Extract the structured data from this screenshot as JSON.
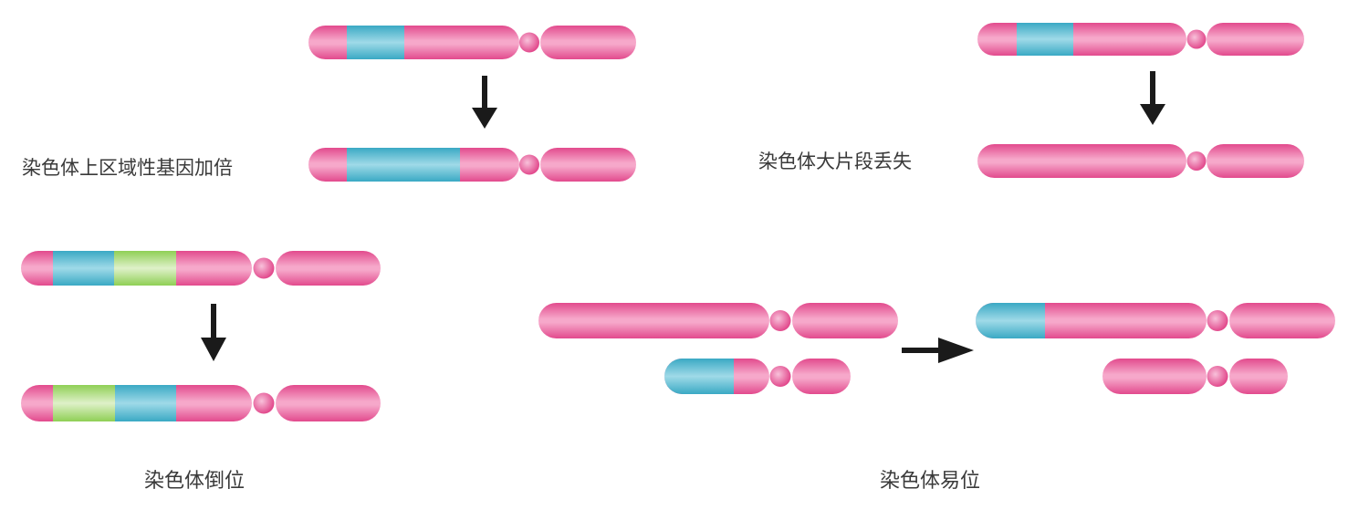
{
  "colors": {
    "arm": "#e24a8d",
    "arm_highlight": "#f6a8ca",
    "segment_blue": "#3aa9c4",
    "segment_blue_highlight": "#9fdae8",
    "segment_green": "#8fcf55",
    "segment_green_highlight": "#dff1c9",
    "arrow": "#1a1a1a",
    "text": "#3a3a3a"
  },
  "panels": {
    "duplication": {
      "label": "染色体上区域性基因加倍"
    },
    "deletion": {
      "label": "染色体大片段丢失"
    },
    "inversion": {
      "label": "染色体倒位"
    },
    "translocation": {
      "label": "染色体易位"
    }
  }
}
